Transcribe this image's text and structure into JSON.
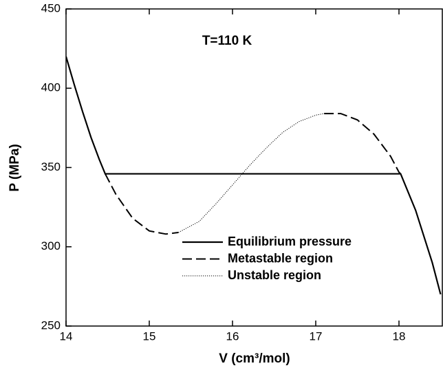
{
  "chart_data": {
    "type": "line",
    "annotation": "T=110 K",
    "x_label": "V (cm³/mol)",
    "y_label": "P (MPa)",
    "xlim": [
      14,
      18.5
    ],
    "ylim": [
      250,
      450
    ],
    "xticks": [
      14,
      15,
      16,
      17,
      18
    ],
    "yticks": [
      250,
      300,
      350,
      400,
      450
    ],
    "grid": false,
    "legend": "lower-right",
    "series": [
      {
        "name": "Equilibrium pressure",
        "color": "#000000",
        "dash": "solid",
        "x": [
          14.0,
          14.1,
          14.2,
          14.3,
          14.4,
          14.47,
          18.02,
          18.2,
          18.4,
          18.5
        ],
        "values": [
          420,
          402,
          385,
          369,
          355,
          346,
          346,
          323,
          290,
          270
        ]
      },
      {
        "name": "Metastable region",
        "color": "#000000",
        "dash": "dashed",
        "x": [
          14.47,
          14.6,
          14.8,
          15.0,
          15.2,
          15.35,
          16.2,
          17.1,
          17.3,
          17.5,
          17.7,
          17.9,
          18.0,
          18.02
        ],
        "values": [
          346,
          333,
          318,
          310,
          308,
          309,
          null,
          384,
          384,
          380,
          371,
          357,
          347,
          346
        ]
      },
      {
        "name": "Unstable region",
        "color": "#000000",
        "dash": "dotted",
        "x": [
          15.35,
          15.6,
          15.8,
          16.0,
          16.2,
          16.4,
          16.6,
          16.8,
          17.0,
          17.1
        ],
        "values": [
          309,
          316,
          327,
          339,
          351,
          362,
          372,
          379,
          383,
          384
        ]
      }
    ]
  }
}
